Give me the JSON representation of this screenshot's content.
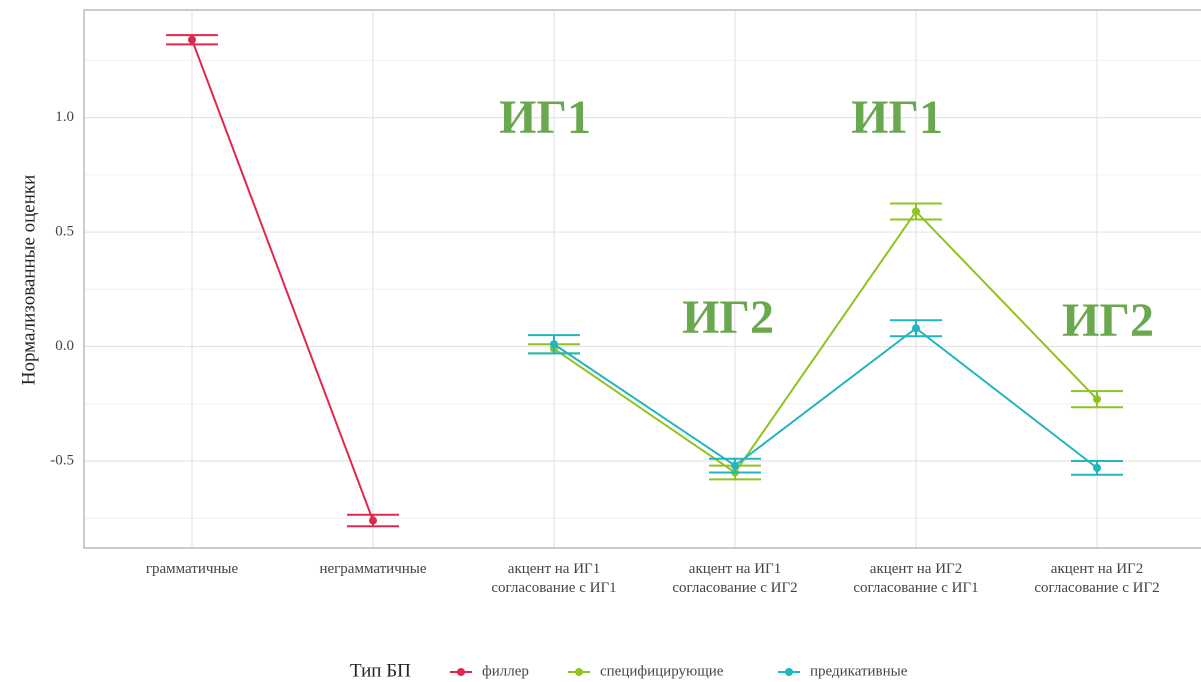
{
  "chart_data": {
    "type": "line",
    "ylabel": "Нормализованные оценки",
    "categories": [
      "грамматичные",
      "неграмматичные",
      "акцент на ИГ1\nсогласование с ИГ1",
      "акцент на ИГ1\nсогласование с ИГ2",
      "акцент на ИГ2\nсогласование с ИГ1",
      "акцент на ИГ2\nсогласование с ИГ2"
    ],
    "series": [
      {
        "name": "филлер",
        "color": "#e0284f",
        "values": [
          1.34,
          -0.76,
          null,
          null,
          null,
          null
        ],
        "errors": [
          0.02,
          0.025,
          null,
          null,
          null,
          null
        ]
      },
      {
        "name": "специфицирующие",
        "color": "#8fc31f",
        "values": [
          null,
          null,
          -0.01,
          -0.55,
          0.59,
          -0.23
        ],
        "errors": [
          null,
          null,
          0.02,
          0.03,
          0.035,
          0.035
        ]
      },
      {
        "name": "предикативные",
        "color": "#22b5c0",
        "values": [
          null,
          null,
          0.01,
          -0.52,
          0.08,
          -0.53
        ],
        "errors": [
          null,
          null,
          0.04,
          0.03,
          0.035,
          0.03
        ]
      }
    ],
    "ylim": [
      -0.88,
      1.47
    ],
    "yticks": [
      -0.5,
      {
        "value": 0,
        "label": "0.0"
      },
      0.5,
      {
        "value": 1,
        "label": "1.0"
      }
    ],
    "grid": true,
    "legend_title": "Тип БП",
    "legend_position": "bottom",
    "annotations": [
      "ИГ1",
      "ИГ2",
      "ИГ1",
      "ИГ2"
    ],
    "annotation_color": "#6aa84f"
  }
}
